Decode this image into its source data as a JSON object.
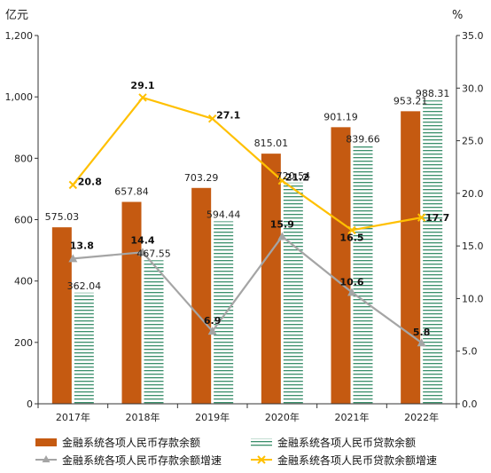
{
  "chart_data": {
    "type": "bar",
    "categories": [
      "2017年",
      "2018年",
      "2019年",
      "2020年",
      "2021年",
      "2022年"
    ],
    "left_axis": {
      "unit": "亿元",
      "min": 0,
      "max": 1200,
      "step": 200,
      "tick_labels": [
        "0",
        "200",
        "400",
        "600",
        "800",
        "1,000",
        "1,200"
      ]
    },
    "right_axis": {
      "unit": "%",
      "min": 0,
      "max": 35,
      "step": 5,
      "tick_labels": [
        "0.0",
        "5.0",
        "10.0",
        "15.0",
        "20.0",
        "25.0",
        "30.0",
        "35.0"
      ]
    },
    "series": [
      {
        "name": "金融系统各项人民币存款余额",
        "kind": "bar",
        "axis": "left",
        "color": "#C55A11",
        "values": [
          575.03,
          657.84,
          703.29,
          815.01,
          901.19,
          953.21
        ],
        "labels": [
          "575.03",
          "657.84",
          "703.29",
          "815.01",
          "901.19",
          "953.21"
        ]
      },
      {
        "name": "金融系统各项人民币贷款余额",
        "kind": "bar-hatched",
        "axis": "left",
        "color": "#3A8F6B",
        "values": [
          362.04,
          467.55,
          594.44,
          720.54,
          839.66,
          988.31
        ],
        "labels": [
          "362.04",
          "467.55",
          "594.44",
          "720.54",
          "839.66",
          "988.31"
        ]
      },
      {
        "name": "金融系统各项人民币存款余额增速",
        "kind": "line",
        "axis": "right",
        "color": "#A5A5A5",
        "marker": "triangle",
        "values": [
          13.8,
          14.4,
          6.9,
          15.9,
          10.6,
          5.8
        ],
        "labels": [
          "13.8",
          "14.4",
          "6.9",
          "15.9",
          "10.6",
          "5.8"
        ]
      },
      {
        "name": "金融系统各项人民币贷款余额增速",
        "kind": "line",
        "axis": "right",
        "color": "#FFC000",
        "marker": "x",
        "values": [
          20.8,
          29.1,
          27.1,
          21.2,
          16.5,
          17.7
        ],
        "labels": [
          "20.8",
          "29.1",
          "27.1",
          "21.2",
          "16.5",
          "17.7"
        ]
      }
    ],
    "legend_position": "bottom",
    "grid": false
  }
}
